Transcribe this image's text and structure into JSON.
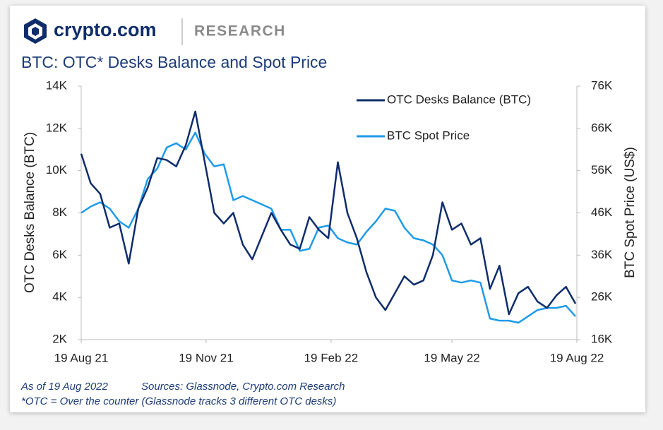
{
  "header": {
    "brand": "crypto.com",
    "section": "RESEARCH"
  },
  "chart_data": {
    "type": "line",
    "title": "BTC: OTC* Desks Balance and Spot Price",
    "y_label": "OTC Desks Balance (BTC)",
    "y2_label": "BTC Spot Price (US$)",
    "x": [
      "2021-08-19",
      "2021-08-26",
      "2021-09-02",
      "2021-09-09",
      "2021-09-16",
      "2021-09-23",
      "2021-09-30",
      "2021-10-07",
      "2021-10-14",
      "2021-10-21",
      "2021-10-28",
      "2021-11-04",
      "2021-11-11",
      "2021-11-18",
      "2021-11-25",
      "2021-12-02",
      "2021-12-09",
      "2021-12-16",
      "2021-12-23",
      "2021-12-30",
      "2022-01-06",
      "2022-01-13",
      "2022-01-20",
      "2022-01-27",
      "2022-02-03",
      "2022-02-10",
      "2022-02-17",
      "2022-02-24",
      "2022-03-03",
      "2022-03-10",
      "2022-03-17",
      "2022-03-24",
      "2022-03-31",
      "2022-04-07",
      "2022-04-14",
      "2022-04-21",
      "2022-04-28",
      "2022-05-05",
      "2022-05-12",
      "2022-05-19",
      "2022-05-26",
      "2022-06-02",
      "2022-06-09",
      "2022-06-16",
      "2022-06-23",
      "2022-06-30",
      "2022-07-07",
      "2022-07-14",
      "2022-07-21",
      "2022-07-28",
      "2022-08-04",
      "2022-08-11",
      "2022-08-18"
    ],
    "xlim": [
      "2021-08-19",
      "2022-08-19"
    ],
    "xticks": [
      {
        "value": "2021-08-19",
        "label": "19 Aug 21"
      },
      {
        "value": "2021-11-19",
        "label": "19 Nov 21"
      },
      {
        "value": "2022-02-19",
        "label": "19 Feb 22"
      },
      {
        "value": "2022-05-19",
        "label": "19 May 22"
      },
      {
        "value": "2022-08-19",
        "label": "19 Aug 22"
      }
    ],
    "ylim": [
      2000,
      14000
    ],
    "yticks": [
      {
        "value": 2000,
        "label": "2K"
      },
      {
        "value": 4000,
        "label": "4K"
      },
      {
        "value": 6000,
        "label": "6K"
      },
      {
        "value": 8000,
        "label": "8K"
      },
      {
        "value": 10000,
        "label": "10K"
      },
      {
        "value": 12000,
        "label": "12K"
      },
      {
        "value": 14000,
        "label": "14K"
      }
    ],
    "y2lim": [
      16000,
      76000
    ],
    "y2ticks": [
      {
        "value": 16000,
        "label": "16K"
      },
      {
        "value": 26000,
        "label": "26K"
      },
      {
        "value": 36000,
        "label": "36K"
      },
      {
        "value": 46000,
        "label": "46K"
      },
      {
        "value": 56000,
        "label": "56K"
      },
      {
        "value": 66000,
        "label": "66K"
      },
      {
        "value": 76000,
        "label": "76K"
      }
    ],
    "legend": "top-right",
    "series": [
      {
        "name": "OTC Desks Balance (BTC)",
        "color": "#0f2d6b",
        "values": [
          10800,
          9400,
          8900,
          7300,
          7500,
          5600,
          8200,
          9200,
          10600,
          10500,
          10200,
          11200,
          12800,
          10400,
          8000,
          7500,
          8000,
          6500,
          5800,
          6900,
          8000,
          7200,
          6500,
          6300,
          7800,
          7200,
          6800,
          10400,
          8000,
          6800,
          5200,
          4000,
          3400,
          4200,
          5000,
          4600,
          4800,
          6000,
          8500,
          7200,
          7500,
          6500,
          6800,
          4400,
          5500,
          3200,
          4200,
          4500,
          3800,
          3500,
          4100,
          4500,
          3700
        ]
      },
      {
        "name": "BTC Spot Price",
        "color": "#1e9be9",
        "axis": "y2",
        "values": [
          46000,
          47500,
          48500,
          47000,
          44000,
          42500,
          47000,
          54000,
          56500,
          61500,
          62500,
          61000,
          65000,
          60000,
          57000,
          57500,
          49000,
          50000,
          49000,
          48000,
          47000,
          42000,
          42000,
          37000,
          37500,
          42500,
          43000,
          40000,
          39000,
          38500,
          41500,
          44000,
          47000,
          46500,
          42500,
          40000,
          39500,
          38500,
          36000,
          30000,
          29500,
          30000,
          29500,
          21000,
          20500,
          20500,
          20000,
          21500,
          23000,
          23500,
          23500,
          24000,
          21500
        ]
      }
    ]
  },
  "notes": {
    "as_of": "As of 19 Aug 2022",
    "sources": "Sources: Glassnode, Crypto.com Research",
    "footnote": "*OTC = Over the counter (Glassnode tracks 3 different OTC desks)"
  }
}
